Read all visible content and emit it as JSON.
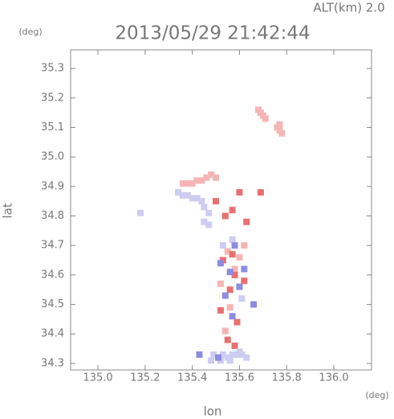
{
  "chart_data": {
    "type": "scatter",
    "title": "2013/05/29 21:42:44",
    "subtitle": "ALT(km) 2.0",
    "x_label": "lon",
    "y_label": "lat",
    "x_unit": "(deg)",
    "y_unit": "(deg)",
    "xlim": [
      134.884,
      136.16
    ],
    "ylim": [
      34.278,
      35.363
    ],
    "xticks": [
      {
        "value": 135,
        "label": "135.0"
      },
      135.2,
      135.4,
      135.6,
      135.8,
      {
        "value": 136,
        "label": "136.0"
      }
    ],
    "yticks": [
      34.3,
      34.4,
      34.5,
      34.6,
      34.7,
      34.8,
      34.9,
      {
        "value": 35,
        "label": "35.0"
      },
      35.1,
      35.2,
      35.3
    ],
    "series": [
      {
        "color": "#f5b5b5",
        "x": [
          135.68,
          135.69,
          135.7,
          135.71,
          135.76,
          135.77,
          135.78,
          135.77,
          135.36,
          135.38,
          135.4,
          135.42,
          135.44,
          135.46,
          135.48,
          135.5,
          135.55,
          135.58,
          135.52,
          135.6,
          135.56,
          135.62,
          135.54
        ],
        "values": [
          35.16,
          35.15,
          35.14,
          35.13,
          35.1,
          35.09,
          35.08,
          35.11,
          34.91,
          34.91,
          34.91,
          34.92,
          34.92,
          34.93,
          34.94,
          34.93,
          34.68,
          34.62,
          34.57,
          34.66,
          34.49,
          34.7,
          34.41
        ]
      },
      {
        "color": "#e87070",
        "x": [
          135.5,
          135.54,
          135.57,
          135.6,
          135.53,
          135.58,
          135.56,
          135.62,
          135.52,
          135.59,
          135.55,
          135.57,
          135.69,
          135.63,
          135.58
        ],
        "values": [
          34.85,
          34.8,
          34.82,
          34.88,
          34.65,
          34.6,
          34.55,
          34.58,
          34.48,
          34.44,
          34.38,
          34.67,
          34.88,
          34.78,
          34.36
        ]
      },
      {
        "color": "#cdcdf2",
        "x": [
          135.34,
          135.36,
          135.38,
          135.4,
          135.42,
          135.44,
          135.45,
          135.47,
          135.45,
          135.47,
          135.49,
          135.51,
          135.53,
          135.55,
          135.57,
          135.59,
          135.61,
          135.63,
          135.48,
          135.52,
          135.56,
          135.6,
          135.53,
          135.57,
          135.61,
          135.18
        ],
        "values": [
          34.88,
          34.87,
          34.87,
          34.86,
          34.86,
          34.85,
          34.83,
          34.81,
          34.78,
          34.77,
          34.33,
          34.32,
          34.33,
          34.32,
          34.33,
          34.33,
          34.33,
          34.32,
          34.31,
          34.31,
          34.31,
          34.34,
          34.7,
          34.72,
          34.52,
          34.81
        ]
      },
      {
        "color": "#8c8ce0",
        "x": [
          135.52,
          135.56,
          135.6,
          135.58,
          135.54,
          135.62,
          135.51,
          135.57,
          135.43,
          135.66
        ],
        "values": [
          34.64,
          34.61,
          34.56,
          34.7,
          34.53,
          34.62,
          34.32,
          34.46,
          34.33,
          34.5
        ]
      }
    ]
  }
}
